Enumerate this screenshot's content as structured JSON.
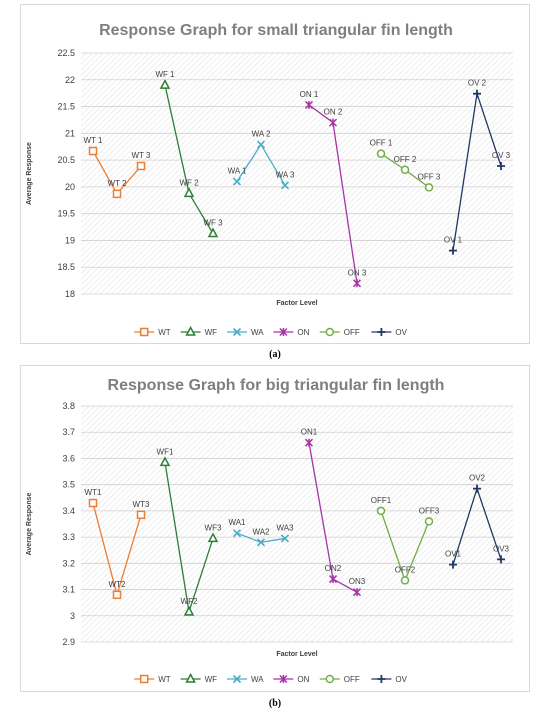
{
  "figure": {
    "caption_a": "(a)",
    "caption_b": "(b)"
  },
  "chart_data": [
    {
      "type": "line",
      "title": "Response Graph for small triangular fin length",
      "xlabel": "Factor Level",
      "ylabel": "Average Response",
      "ylim": [
        18,
        22.5
      ],
      "yticks": [
        "18",
        "18.5",
        "19",
        "19.5",
        "20",
        "20.5",
        "21",
        "21.5",
        "22",
        "22.5"
      ],
      "grid": true,
      "legend_position": "bottom",
      "series": [
        {
          "name": "WT",
          "color": "#ed7d31",
          "marker": "square",
          "labels": [
            "WT 1",
            "WT 2",
            "WT 3"
          ],
          "values": [
            20.67,
            19.87,
            20.39
          ]
        },
        {
          "name": "WF",
          "color": "#2e7d32",
          "marker": "triangle",
          "labels": [
            "WF 1",
            "WF 2",
            "WF 3"
          ],
          "values": [
            21.9,
            19.88,
            19.13
          ]
        },
        {
          "name": "WA",
          "color": "#4bacc6",
          "marker": "x",
          "labels": [
            "WA 1",
            "WA 2",
            "WA 3"
          ],
          "values": [
            20.1,
            20.79,
            20.03
          ]
        },
        {
          "name": "ON",
          "color": "#a832a8",
          "marker": "star",
          "labels": [
            "ON 1",
            "ON 2",
            "ON 3"
          ],
          "values": [
            21.53,
            21.2,
            18.2
          ]
        },
        {
          "name": "OFF",
          "color": "#70ad47",
          "marker": "circle",
          "labels": [
            "OFF 1",
            "OFF 2",
            "OFF 3"
          ],
          "values": [
            20.62,
            20.32,
            19.99
          ]
        },
        {
          "name": "OV",
          "color": "#203864",
          "marker": "plus",
          "labels": [
            "OV 1",
            "OV 2",
            "OV 3"
          ],
          "values": [
            18.81,
            21.74,
            20.39
          ]
        }
      ]
    },
    {
      "type": "line",
      "title": "Response Graph for big triangular fin length",
      "xlabel": "Factor Level",
      "ylabel": "Average Response",
      "ylim": [
        2.9,
        3.8
      ],
      "yticks": [
        "2.9",
        "3",
        "3.1",
        "3.2",
        "3.3",
        "3.4",
        "3.5",
        "3.6",
        "3.7",
        "3.8"
      ],
      "grid": true,
      "legend_position": "bottom",
      "series": [
        {
          "name": "WT",
          "color": "#ed7d31",
          "marker": "square",
          "labels": [
            "WT1",
            "WT2",
            "WT3"
          ],
          "values": [
            3.43,
            3.08,
            3.385
          ]
        },
        {
          "name": "WF",
          "color": "#2e7d32",
          "marker": "triangle",
          "labels": [
            "WF1",
            "WF2",
            "WF3"
          ],
          "values": [
            3.585,
            3.015,
            3.295
          ]
        },
        {
          "name": "WA",
          "color": "#4bacc6",
          "marker": "x",
          "labels": [
            "WA1",
            "WA2",
            "WA3"
          ],
          "values": [
            3.315,
            3.28,
            3.295
          ]
        },
        {
          "name": "ON",
          "color": "#a832a8",
          "marker": "star",
          "labels": [
            "ON1",
            "ON2",
            "ON3"
          ],
          "values": [
            3.66,
            3.14,
            3.09
          ]
        },
        {
          "name": "OFF",
          "color": "#70ad47",
          "marker": "circle",
          "labels": [
            "OFF1",
            "OFF2",
            "OFF3"
          ],
          "values": [
            3.4,
            3.135,
            3.36
          ]
        },
        {
          "name": "OV",
          "color": "#203864",
          "marker": "plus",
          "labels": [
            "OV1",
            "OV2",
            "OV3"
          ],
          "values": [
            3.195,
            3.485,
            3.215
          ]
        }
      ]
    }
  ]
}
